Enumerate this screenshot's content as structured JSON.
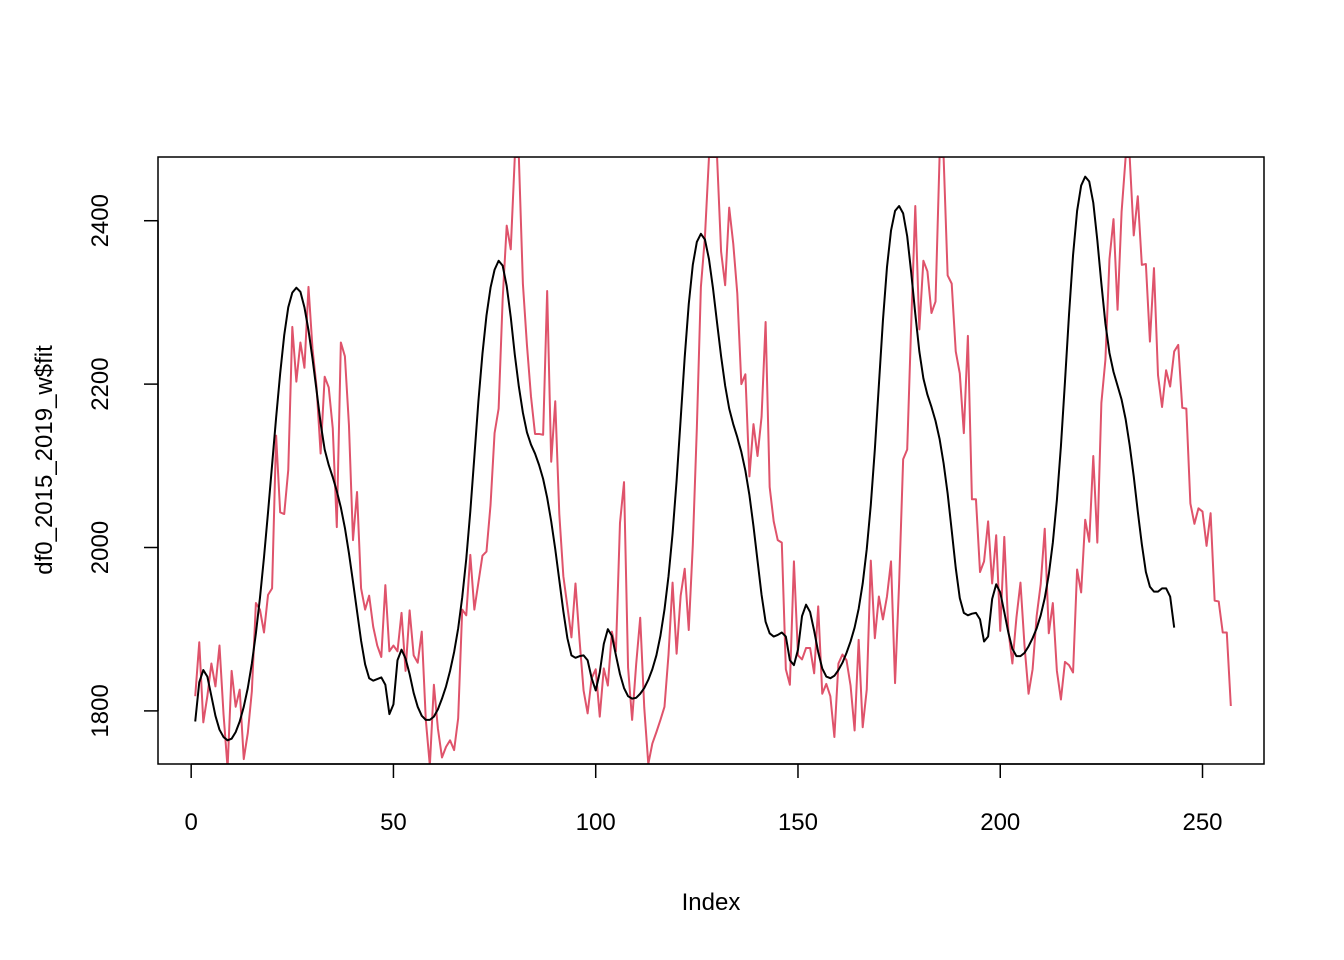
{
  "chart_data": {
    "type": "line",
    "title": "",
    "xlabel": "Index",
    "ylabel": "df0_2015_2019_w$fit",
    "xlim": [
      -8.2,
      265.2
    ],
    "ylim": [
      1735,
      2478
    ],
    "grid": false,
    "legend": "none",
    "x_ticks": [
      0,
      50,
      100,
      150,
      200,
      250
    ],
    "y_ticks": [
      1800,
      2000,
      2200,
      2400
    ],
    "x_tick_labels": [
      "0",
      "50",
      "100",
      "150",
      "200",
      "250"
    ],
    "y_tick_labels": [
      "1800",
      "2000",
      "2200",
      "2400"
    ],
    "x_start": 1,
    "series": [
      {
        "color": "#000000",
        "role": "fitted",
        "values": [
          1787,
          1835,
          1850,
          1842,
          1818,
          1794,
          1777,
          1768,
          1764,
          1766,
          1774,
          1787,
          1805,
          1828,
          1858,
          1895,
          1938,
          1988,
          2043,
          2101,
          2159,
          2213,
          2260,
          2294,
          2312,
          2318,
          2313,
          2294,
          2266,
          2231,
          2192,
          2152,
          2120,
          2101,
          2086,
          2069,
          2049,
          2024,
          1993,
          1958,
          1922,
          1886,
          1857,
          1840,
          1837,
          1839,
          1841,
          1832,
          1796,
          1808,
          1862,
          1875,
          1864,
          1845,
          1822,
          1805,
          1794,
          1789,
          1789,
          1793,
          1802,
          1815,
          1830,
          1849,
          1872,
          1901,
          1939,
          1986,
          2044,
          2111,
          2179,
          2237,
          2284,
          2318,
          2340,
          2351,
          2345,
          2320,
          2282,
          2236,
          2197,
          2165,
          2141,
          2126,
          2115,
          2101,
          2084,
          2061,
          2032,
          1998,
          1960,
          1922,
          1889,
          1868,
          1865,
          1867,
          1868,
          1862,
          1840,
          1825,
          1847,
          1882,
          1900,
          1892,
          1868,
          1845,
          1828,
          1818,
          1815,
          1816,
          1821,
          1828,
          1838,
          1851,
          1868,
          1892,
          1924,
          1965,
          2017,
          2082,
          2157,
          2233,
          2298,
          2346,
          2374,
          2384,
          2377,
          2353,
          2317,
          2275,
          2234,
          2198,
          2170,
          2151,
          2135,
          2117,
          2094,
          2064,
          2026,
          1984,
          1942,
          1909,
          1895,
          1891,
          1893,
          1896,
          1891,
          1862,
          1856,
          1875,
          1916,
          1930,
          1921,
          1898,
          1872,
          1852,
          1842,
          1840,
          1843,
          1850,
          1859,
          1871,
          1885,
          1902,
          1925,
          1956,
          1998,
          2052,
          2120,
          2199,
          2278,
          2343,
          2388,
          2412,
          2418,
          2409,
          2381,
          2336,
          2286,
          2240,
          2207,
          2187,
          2172,
          2155,
          2133,
          2103,
          2066,
          2021,
          1975,
          1938,
          1920,
          1917,
          1919,
          1920,
          1912,
          1885,
          1891,
          1937,
          1955,
          1945,
          1921,
          1896,
          1876,
          1867,
          1867,
          1871,
          1879,
          1889,
          1901,
          1917,
          1938,
          1967,
          2006,
          2058,
          2124,
          2203,
          2285,
          2358,
          2412,
          2443,
          2454,
          2448,
          2422,
          2376,
          2323,
          2274,
          2238,
          2215,
          2198,
          2181,
          2157,
          2125,
          2087,
          2044,
          2004,
          1970,
          1952,
          1946,
          1946,
          1950,
          1950,
          1940,
          1902
        ]
      },
      {
        "color": "#DF536B",
        "role": "observed",
        "values": [
          1818,
          1884,
          1786,
          1818,
          1858,
          1830,
          1880,
          1796,
          1730,
          1849,
          1805,
          1826,
          1741,
          1773,
          1824,
          1932,
          1924,
          1896,
          1942,
          1950,
          2137,
          2043,
          2041,
          2095,
          2270,
          2203,
          2251,
          2220,
          2319,
          2243,
          2196,
          2115,
          2209,
          2196,
          2146,
          2025,
          2251,
          2234,
          2150,
          2009,
          2068,
          1950,
          1924,
          1941,
          1903,
          1880,
          1866,
          1954,
          1873,
          1880,
          1873,
          1920,
          1849,
          1923,
          1868,
          1859,
          1897,
          1789,
          1733,
          1832,
          1778,
          1743,
          1756,
          1764,
          1752,
          1791,
          1924,
          1917,
          1991,
          1924,
          1957,
          1990,
          1995,
          2052,
          2140,
          2170,
          2304,
          2394,
          2365,
          2478,
          2478,
          2323,
          2248,
          2185,
          2139,
          2139,
          2138,
          2314,
          2105,
          2179,
          2041,
          1965,
          1928,
          1890,
          1956,
          1887,
          1825,
          1797,
          1840,
          1851,
          1793,
          1852,
          1831,
          1897,
          1873,
          2030,
          2080,
          1853,
          1789,
          1857,
          1914,
          1804,
          1735,
          1760,
          1774,
          1789,
          1805,
          1869,
          1957,
          1870,
          1941,
          1974,
          1899,
          2003,
          2146,
          2319,
          2380,
          2478,
          2478,
          2478,
          2362,
          2321,
          2416,
          2372,
          2311,
          2200,
          2212,
          2087,
          2151,
          2112,
          2160,
          2276,
          2074,
          2032,
          2009,
          2006,
          1851,
          1832,
          1983,
          1868,
          1863,
          1877,
          1877,
          1846,
          1928,
          1821,
          1833,
          1818,
          1768,
          1858,
          1869,
          1862,
          1831,
          1776,
          1887,
          1780,
          1826,
          1984,
          1889,
          1940,
          1912,
          1940,
          1983,
          1834,
          1956,
          2108,
          2120,
          2275,
          2418,
          2267,
          2351,
          2338,
          2287,
          2301,
          2478,
          2478,
          2333,
          2323,
          2240,
          2213,
          2140,
          2259,
          2059,
          2059,
          1970,
          1983,
          2032,
          1956,
          2015,
          1898,
          2013,
          1899,
          1858,
          1914,
          1957,
          1880,
          1821,
          1851,
          1916,
          1955,
          2023,
          1895,
          1932,
          1849,
          1814,
          1860,
          1856,
          1847,
          1973,
          1945,
          2034,
          2007,
          2112,
          2006,
          2177,
          2230,
          2353,
          2402,
          2291,
          2411,
          2478,
          2478,
          2382,
          2430,
          2346,
          2347,
          2252,
          2342,
          2211,
          2172,
          2217,
          2197,
          2240,
          2248,
          2171,
          2170,
          2054,
          2029,
          2048,
          2044,
          2002,
          2042,
          1935,
          1934,
          1896,
          1896,
          1806
        ]
      }
    ]
  }
}
